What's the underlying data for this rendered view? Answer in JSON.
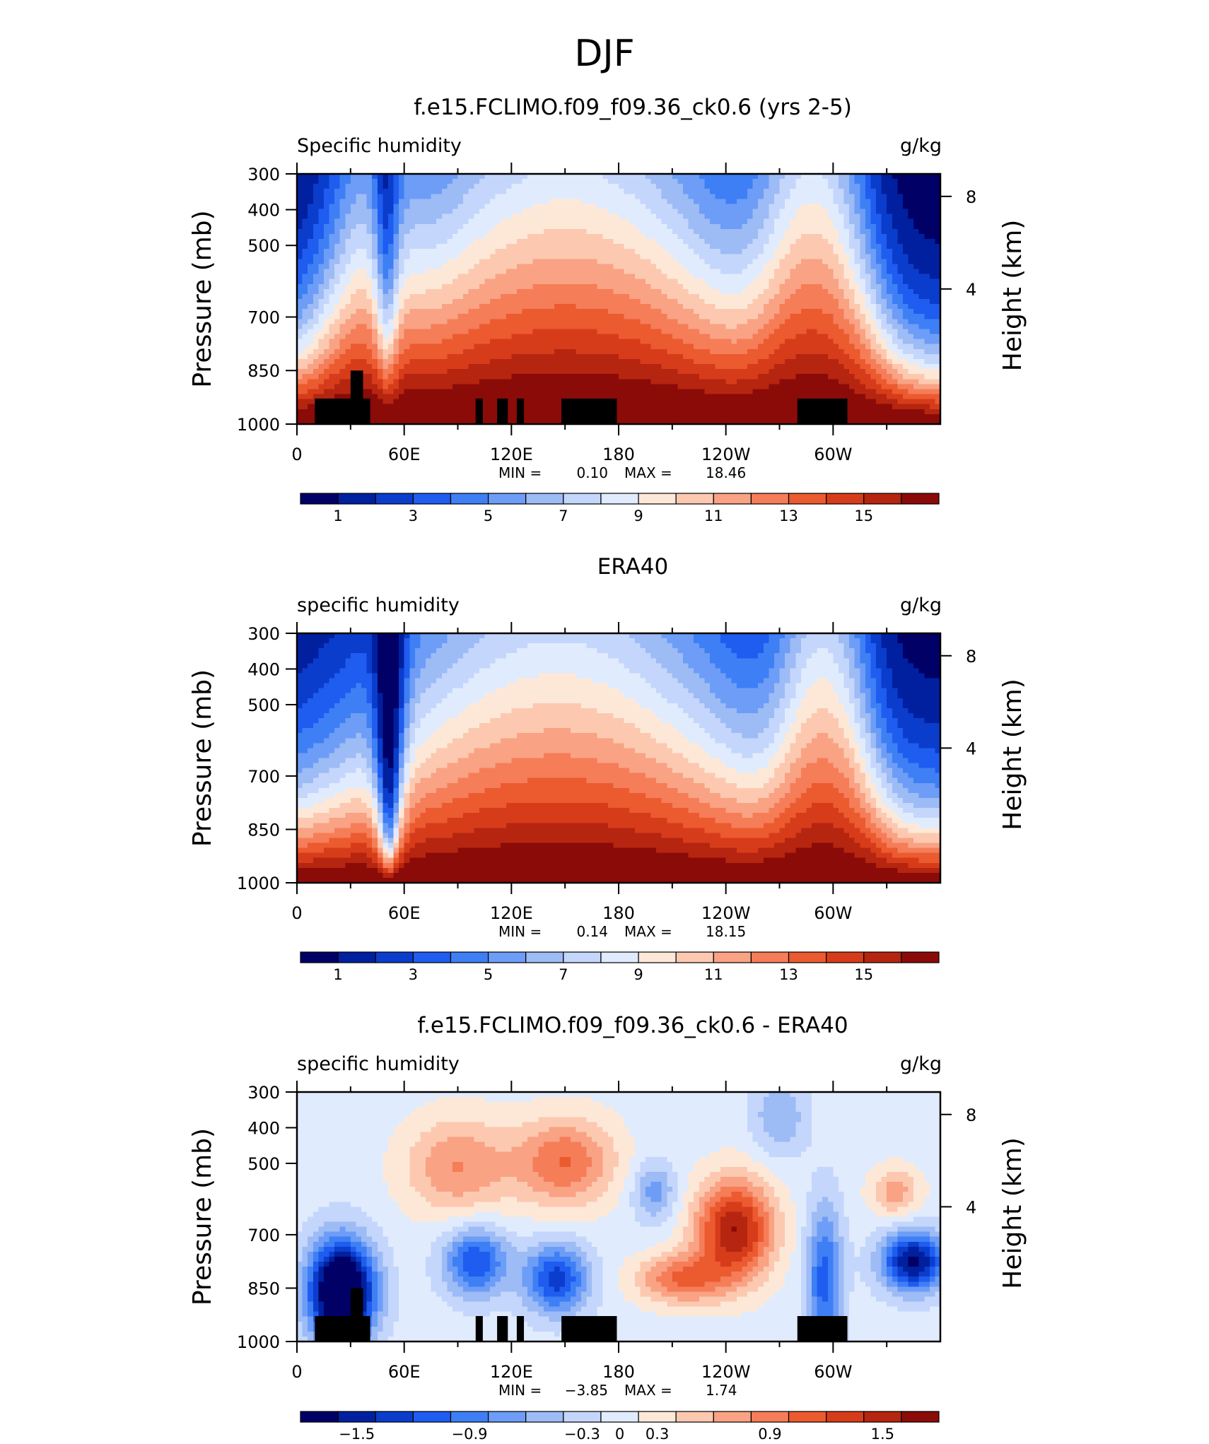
{
  "page": {
    "title": "DJF"
  },
  "chart_data": [
    {
      "type": "heatmap",
      "title": "f.e15.FCLIMO.f09_f09.36_ck0.6 (yrs 2-5)",
      "left_label": "Specific humidity",
      "units": "g/kg",
      "ylabel": "Pressure (mb)",
      "ylabel_right": "Height (km)",
      "xticks": [
        "0",
        "60E",
        "120E",
        "180",
        "120W",
        "60W"
      ],
      "yticks": [
        "300",
        "400",
        "500",
        "700",
        "850",
        "1000"
      ],
      "yticks_right": [
        "8",
        "4"
      ],
      "min_label": "MIN =",
      "min_value": "0.10",
      "max_label": "MAX =",
      "max_value": "18.46",
      "colorbar_labels": [
        "1",
        "3",
        "5",
        "7",
        "9",
        "11",
        "13",
        "15"
      ],
      "colorbar_colors": [
        "#000066",
        "#0020a0",
        "#0b3dcc",
        "#1f5cf0",
        "#3e7ff5",
        "#6d9df6",
        "#9dbbf5",
        "#c4d6fb",
        "#e0ebfd",
        "#fde8d8",
        "#fcc9b0",
        "#f9a284",
        "#f57d58",
        "#ec5a30",
        "#d73c1a",
        "#b52510",
        "#8b0b08"
      ],
      "land_mask": true,
      "field": "model"
    },
    {
      "type": "heatmap",
      "title": "ERA40",
      "left_label": "specific humidity",
      "units": "g/kg",
      "ylabel": "Pressure (mb)",
      "ylabel_right": "Height (km)",
      "xticks": [
        "0",
        "60E",
        "120E",
        "180",
        "120W",
        "60W"
      ],
      "yticks": [
        "300",
        "400",
        "500",
        "700",
        "850",
        "1000"
      ],
      "yticks_right": [
        "8",
        "4"
      ],
      "min_label": "MIN =",
      "min_value": "0.14",
      "max_label": "MAX =",
      "max_value": "18.15",
      "colorbar_labels": [
        "1",
        "3",
        "5",
        "7",
        "9",
        "11",
        "13",
        "15"
      ],
      "colorbar_colors": [
        "#000066",
        "#0020a0",
        "#0b3dcc",
        "#1f5cf0",
        "#3e7ff5",
        "#6d9df6",
        "#9dbbf5",
        "#c4d6fb",
        "#e0ebfd",
        "#fde8d8",
        "#fcc9b0",
        "#f9a284",
        "#f57d58",
        "#ec5a30",
        "#d73c1a",
        "#b52510",
        "#8b0b08"
      ],
      "land_mask": false,
      "field": "obs"
    },
    {
      "type": "heatmap",
      "title": "f.e15.FCLIMO.f09_f09.36_ck0.6 - ERA40",
      "left_label": "specific humidity",
      "units": "g/kg",
      "ylabel": "Pressure (mb)",
      "ylabel_right": "Height (km)",
      "xticks": [
        "0",
        "60E",
        "120E",
        "180",
        "120W",
        "60W"
      ],
      "yticks": [
        "300",
        "400",
        "500",
        "700",
        "850",
        "1000"
      ],
      "yticks_right": [
        "8",
        "4"
      ],
      "min_label": "MIN =",
      "min_value": "−3.85",
      "max_label": "MAX =",
      "max_value": "1.74",
      "colorbar_labels": [
        "−1.5",
        "−0.9",
        "−0.3",
        "0",
        "0.3",
        "0.9",
        "1.5"
      ],
      "colorbar_colors": [
        "#000066",
        "#0020a0",
        "#0b3dcc",
        "#1f5cf0",
        "#3e7ff5",
        "#6d9df6",
        "#9dbbf5",
        "#c4d6fb",
        "#e0ebfd",
        "#fde8d8",
        "#fcc9b0",
        "#f9a284",
        "#f57d58",
        "#ec5a30",
        "#d73c1a",
        "#b52510",
        "#8b0b08"
      ],
      "land_mask": true,
      "field": "diff"
    }
  ]
}
